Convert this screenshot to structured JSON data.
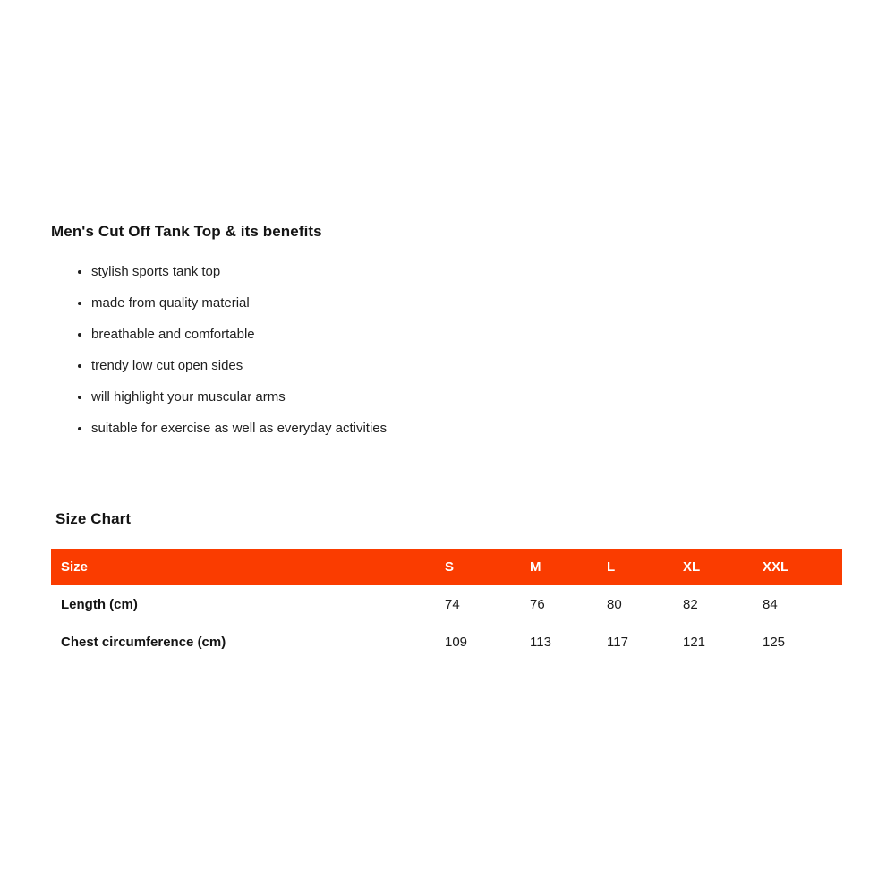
{
  "page": {
    "benefits_heading": "Men's Cut Off Tank Top & its benefits",
    "benefits": [
      "stylish sports tank top",
      "made from quality material",
      "breathable and comfortable",
      "trendy low cut open sides",
      "will highlight your muscular arms",
      "suitable for exercise as well as everyday activities"
    ],
    "size_chart_heading": "Size Chart",
    "table": {
      "header": [
        "Size",
        "S",
        "M",
        "L",
        "XL",
        "XXL"
      ],
      "rows": [
        {
          "label": "Length (cm)",
          "values": [
            "74",
            "76",
            "80",
            "82",
            "84"
          ]
        },
        {
          "label": "Chest circumference (cm)",
          "values": [
            "109",
            "113",
            "117",
            "121",
            "125"
          ]
        }
      ]
    },
    "colors": {
      "header_bg": "#fa3c00",
      "header_text": "#ffffff",
      "body_text": "#1f1f1f"
    }
  }
}
